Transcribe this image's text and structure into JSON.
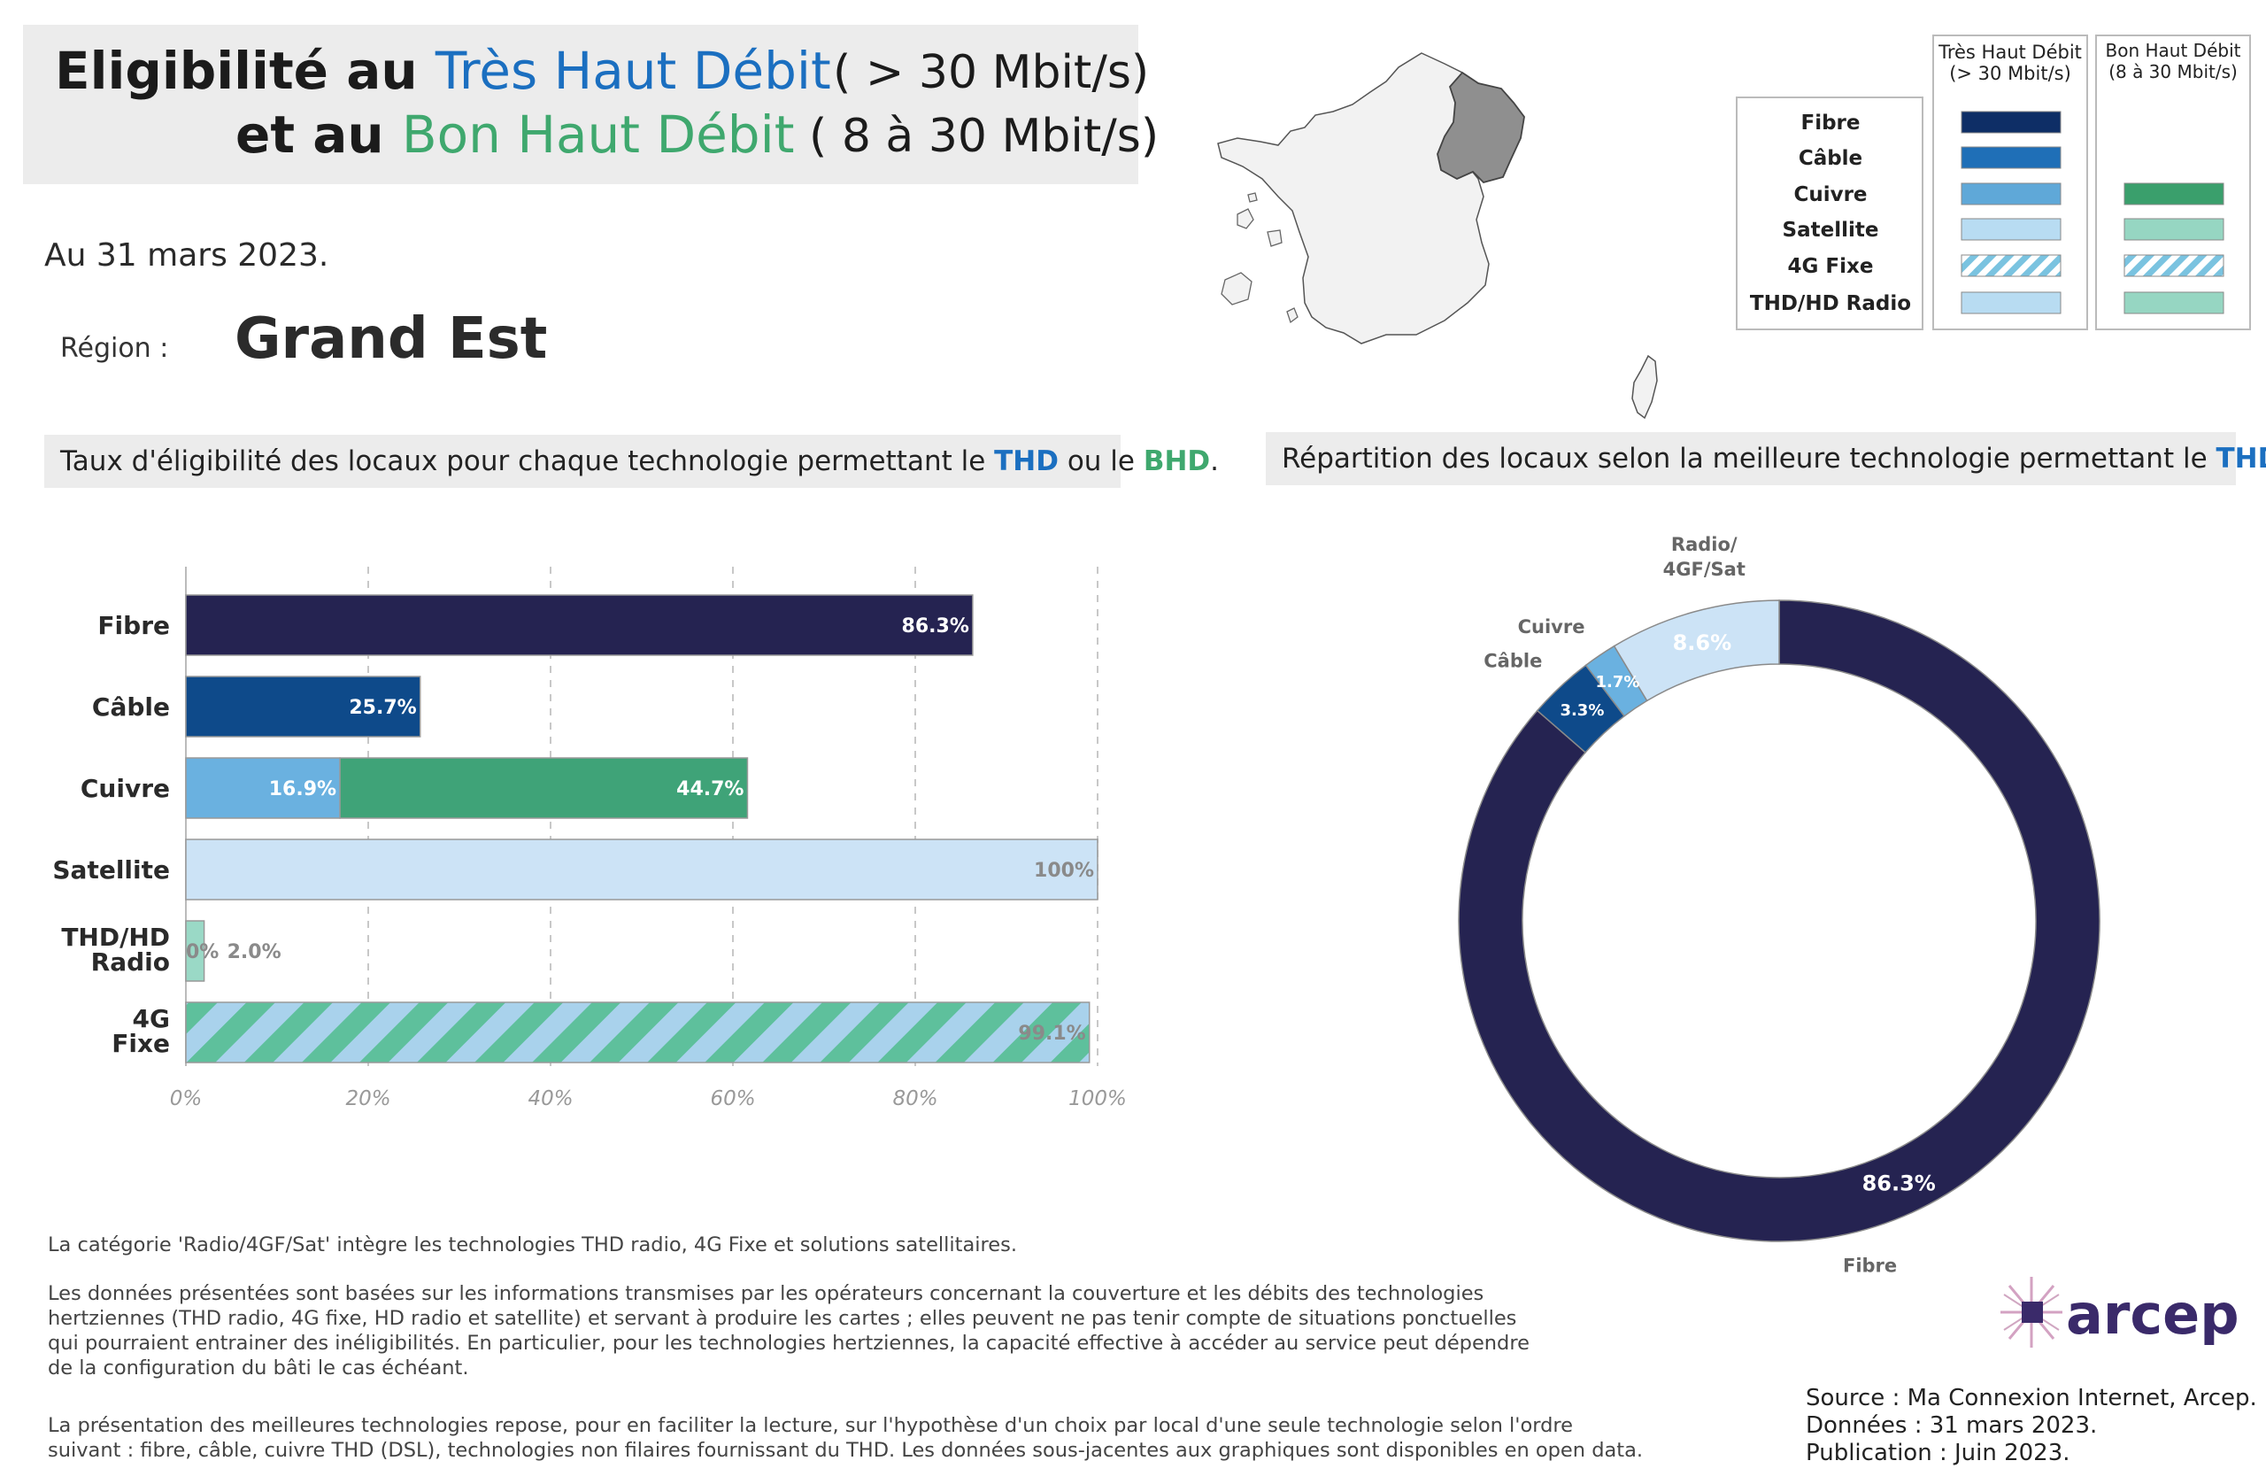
{
  "title": {
    "line1_prefix": "Eligibilité au",
    "line1_highlight": "Très Haut Débit",
    "line1_range": "( > 30 Mbit/s)",
    "line2_prefix": "et au",
    "line2_highlight": "Bon Haut Débit",
    "line2_range": "( 8 à 30 Mbit/s)"
  },
  "date": "Au 31 mars 2023.",
  "region": {
    "label": "Région :",
    "name": "Grand Est"
  },
  "legend": {
    "col_thd": [
      "Très Haut Débit",
      "(> 30 Mbit/s)"
    ],
    "col_bhd": [
      "Bon Haut Débit",
      "(8 à 30 Mbit/s)"
    ],
    "rows": [
      "Fibre",
      "Câble",
      "Cuivre",
      "Satellite",
      "4G Fixe",
      "THD/HD Radio"
    ]
  },
  "colors": {
    "fibre": "#252351",
    "cable": "#0e4a8a",
    "cuivre_thd": "#6ab1e0",
    "cuivre_bhd": "#3fa378",
    "satellite": "#cce3f6",
    "radio_bhd": "#9ad9c6",
    "hatch_a": "#a9d2ec",
    "hatch_b": "#5ec09c",
    "legend_fibre": "#0e2e66",
    "legend_cable": "#1f6fb7",
    "legend_cuivre": "#5fa8d8",
    "legend_light": "#b8dcf2",
    "legend_bhd_cuivre": "#3a9f6c",
    "legend_bhd_light": "#96d6c2",
    "thd_text": "#1b6fc0",
    "bhd_text": "#3fa86e"
  },
  "section_left": {
    "text": "Taux d'éligibilité des locaux pour chaque technologie permettant le",
    "thd": "THD",
    "mid": "ou le",
    "bhd": "BHD",
    "end": "."
  },
  "section_right": {
    "text": "Répartition des locaux selon la meilleure technologie permettant le",
    "thd": "THD",
    "end": "."
  },
  "chart_data": [
    {
      "type": "bar",
      "orientation": "horizontal",
      "stacked": true,
      "categories": [
        "Fibre",
        "Câble",
        "Cuivre",
        "Satellite",
        "THD/HD Radio",
        "4G Fixe"
      ],
      "series": [
        {
          "key": "thd",
          "values": [
            86.3,
            25.7,
            16.9,
            100,
            0,
            99.1
          ],
          "labels": [
            "86.3%",
            "25.7%",
            "16.9%",
            "100%",
            "0%",
            "99.1%"
          ]
        },
        {
          "key": "bhd",
          "values": [
            0,
            0,
            44.7,
            0,
            2.0,
            0
          ],
          "labels": [
            "",
            "",
            "44.7%",
            "",
            "2.0%",
            ""
          ]
        }
      ],
      "xlim": [
        0,
        100
      ],
      "xticks": [
        "0%",
        "20%",
        "40%",
        "60%",
        "80%",
        "100%"
      ],
      "grid": true
    },
    {
      "type": "pie",
      "donut": true,
      "slices": [
        {
          "label": "Fibre",
          "value": 86.3,
          "text": "86.3%"
        },
        {
          "label": "Câble",
          "value": 3.3,
          "text": "3.3%"
        },
        {
          "label": "Cuivre",
          "value": 1.7,
          "text": "1.7%"
        },
        {
          "label": "Radio/ 4GF/Sat",
          "value": 8.6,
          "text": "8.6%"
        }
      ]
    }
  ],
  "notes": {
    "n1": "La catégorie 'Radio/4GF/Sat' intègre les technologies THD radio, 4G Fixe et solutions satellitaires.",
    "n2": [
      "Les données présentées sont basées sur les informations transmises par les opérateurs concernant la couverture et les débits des technologies",
      "hertziennes (THD radio, 4G fixe, HD radio et satellite) et servant à produire les cartes ; elles peuvent ne pas tenir compte de situations ponctuelles",
      "qui pourraient entrainer des inéligibilités. En particulier, pour les technologies hertziennes, la capacité effective à accéder au service peut dépendre",
      "de la configuration du bâti le cas échéant."
    ],
    "n3": [
      "La présentation des meilleures technologies repose, pour en faciliter la lecture, sur l'hypothèse d'un choix par local d'une seule technologie selon l'ordre",
      "suivant : fibre, câble, cuivre THD (DSL), technologies non filaires fournissant du THD. Les données sous-jacentes aux graphiques sont disponibles en open data."
    ]
  },
  "source": [
    "Source : Ma Connexion Internet, Arcep.",
    "Données : 31 mars 2023.",
    "Publication : Juin 2023."
  ],
  "logo_text": "arcep"
}
